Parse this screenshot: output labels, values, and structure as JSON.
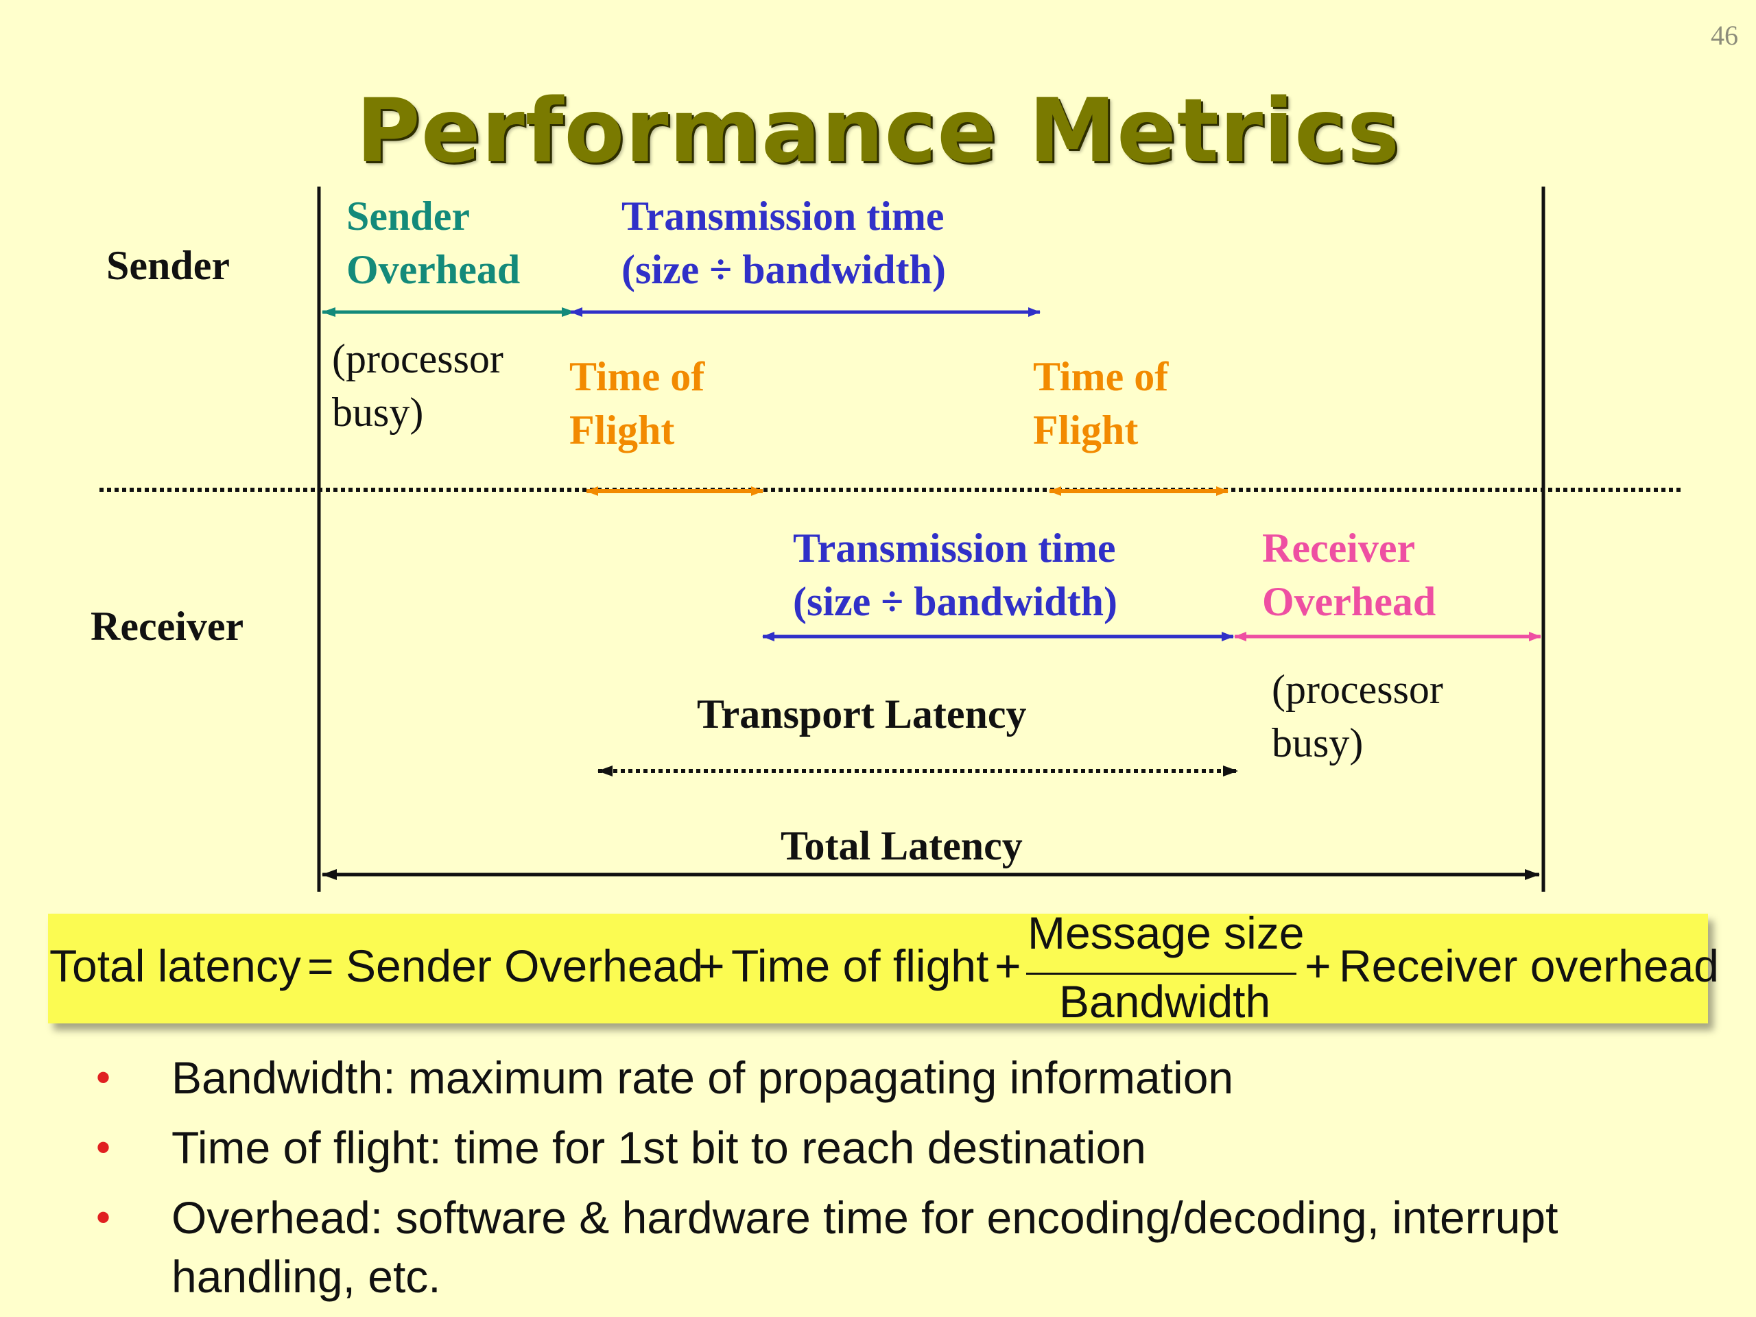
{
  "page_number": "46",
  "title": "Performance Metrics",
  "rows": {
    "sender": "Sender",
    "receiver": "Receiver"
  },
  "labels": {
    "sender_overhead": [
      "Sender",
      "Overhead"
    ],
    "sender_tx_time": [
      "Transmission time",
      "(size ÷ bandwidth)"
    ],
    "sender_processor_busy": [
      "(processor",
      "busy)"
    ],
    "tof_1": [
      "Time of",
      "Flight"
    ],
    "tof_2": [
      "Time of",
      "Flight"
    ],
    "receiver_tx_time": [
      "Transmission time",
      "(size ÷ bandwidth)"
    ],
    "receiver_overhead": [
      "Receiver",
      "Overhead"
    ],
    "receiver_processor_busy": [
      "(processor",
      "busy)"
    ],
    "transport_latency": "Transport Latency",
    "total_latency": "Total Latency"
  },
  "colors": {
    "background": "#ffffcc",
    "title": "#7a7a00",
    "sender_overhead": "#138a7a",
    "transmission": "#3030c8",
    "time_of_flight": "#f28a00",
    "receiver_overhead": "#ee4fa2",
    "formula_box": "#fbfb52",
    "bullet_marker": "#e02020"
  },
  "formula": {
    "lhs": "Total latency",
    "equals": "=",
    "term1": "Sender Overhead",
    "plus1": "+",
    "term2": "Time of flight",
    "plus2": "+",
    "numerator": "Message size",
    "denominator": "Bandwidth",
    "plus3": "+",
    "term4": "Receiver overhead"
  },
  "bullets": [
    "Bandwidth: maximum rate of propagating information",
    "Time of flight: time for 1st bit to reach destination",
    "Overhead: software & hardware time for encoding/decoding, interrupt handling, etc."
  ],
  "bullet_marker": "•"
}
